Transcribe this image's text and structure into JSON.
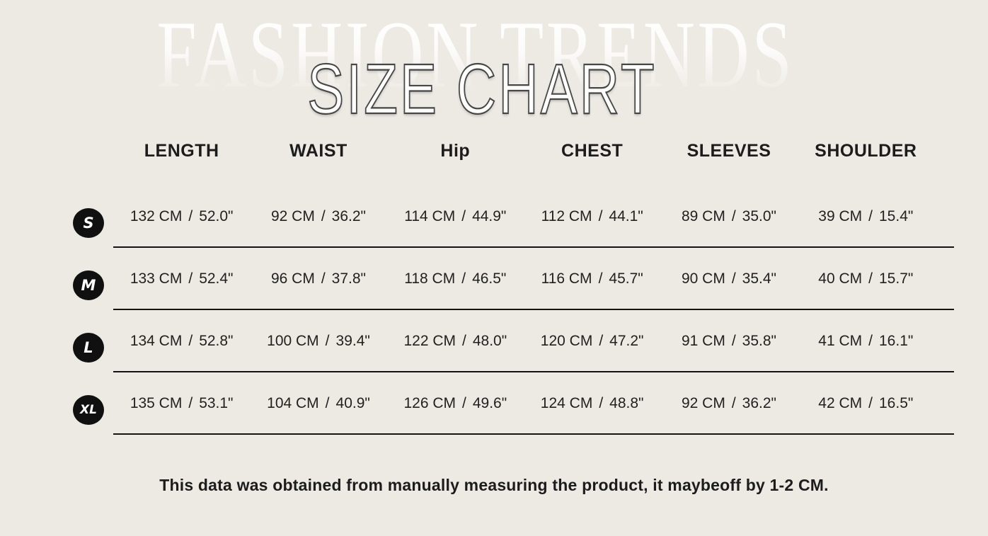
{
  "page": {
    "watermark": "FASHION TRENDS",
    "title": "SIZE CHART",
    "footnote": "This data was obtained from manually measuring the product, it maybeoff by 1-2 CM."
  },
  "colors": {
    "background": "#EDEAE4",
    "text": "#1C1C1C",
    "badge_bg": "#101010",
    "badge_text": "#FFFFFF",
    "divider": "#151515",
    "title_fill": "#FCFCFB",
    "title_outline": "#474747"
  },
  "chart_data": {
    "type": "table",
    "title": "SIZE CHART",
    "separator": "/",
    "columns": [
      "LENGTH",
      "WAIST",
      "Hip",
      "CHEST",
      "SLEEVES",
      "SHOULDER"
    ],
    "rows": [
      {
        "size": "S",
        "cells": [
          [
            "132 CM",
            "52.0\""
          ],
          [
            "92 CM",
            "36.2\""
          ],
          [
            "114 CM",
            "44.9\""
          ],
          [
            "112 CM",
            "44.1\""
          ],
          [
            "89 CM",
            "35.0\""
          ],
          [
            "39 CM",
            "15.4\""
          ]
        ]
      },
      {
        "size": "M",
        "cells": [
          [
            "133 CM",
            "52.4\""
          ],
          [
            "96 CM",
            "37.8\""
          ],
          [
            "118 CM",
            "46.5\""
          ],
          [
            "116 CM",
            "45.7\""
          ],
          [
            "90 CM",
            "35.4\""
          ],
          [
            "40 CM",
            "15.7\""
          ]
        ]
      },
      {
        "size": "L",
        "cells": [
          [
            "134 CM",
            "52.8\""
          ],
          [
            "100 CM",
            "39.4\""
          ],
          [
            "122 CM",
            "48.0\""
          ],
          [
            "120 CM",
            "47.2\""
          ],
          [
            "91 CM",
            "35.8\""
          ],
          [
            "41 CM",
            "16.1\""
          ]
        ]
      },
      {
        "size": "XL",
        "cells": [
          [
            "135 CM",
            "53.1\""
          ],
          [
            "104 CM",
            "40.9\""
          ],
          [
            "126 CM",
            "49.6\""
          ],
          [
            "124 CM",
            "48.8\""
          ],
          [
            "92 CM",
            "36.2\""
          ],
          [
            "42 CM",
            "16.5\""
          ]
        ]
      }
    ],
    "footnote": "This data was obtained from manually measuring the product, it maybeoff by 1-2 CM."
  }
}
